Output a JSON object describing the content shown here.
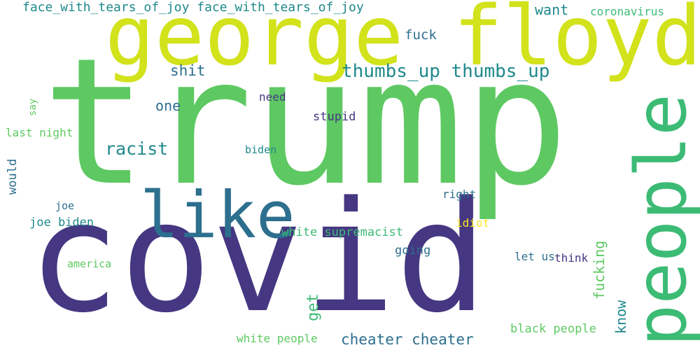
{
  "palette": {
    "background": "#ffffff",
    "dark_purple": "#453781",
    "blue": "#2d6f8e",
    "teal": "#20898c",
    "green": "#3cbb75",
    "lime": "#5ec962",
    "yellow_green": "#d2e21b",
    "yellow": "#fde725"
  },
  "words": {
    "trump": "trump",
    "george_floyd": "george floyd",
    "covid": "covid",
    "people": "people",
    "like": "like",
    "thumbs_up": "thumbs_up thumbs_up",
    "racist": "racist",
    "shit": "shit",
    "want": "want",
    "fuck": "fuck",
    "coronavirus": "coronavirus",
    "face_with_tears": "face_with_tears_of_joy face_with_tears_of_joy",
    "one": "one",
    "need": "need",
    "stupid": "stupid",
    "say": "say",
    "last_night": "last night",
    "biden": "biden",
    "would": "would",
    "joe": "joe",
    "joe_biden": "joe biden",
    "right": "right",
    "idiot": "idiot",
    "white_supremacist": "white supremacist",
    "america": "america",
    "going": "going",
    "let_us": "let us",
    "think": "think",
    "fucking": "fucking",
    "get": "get",
    "know": "know",
    "black_people": "black people",
    "white_people": "white people",
    "cheater_cheater": "cheater cheater"
  }
}
